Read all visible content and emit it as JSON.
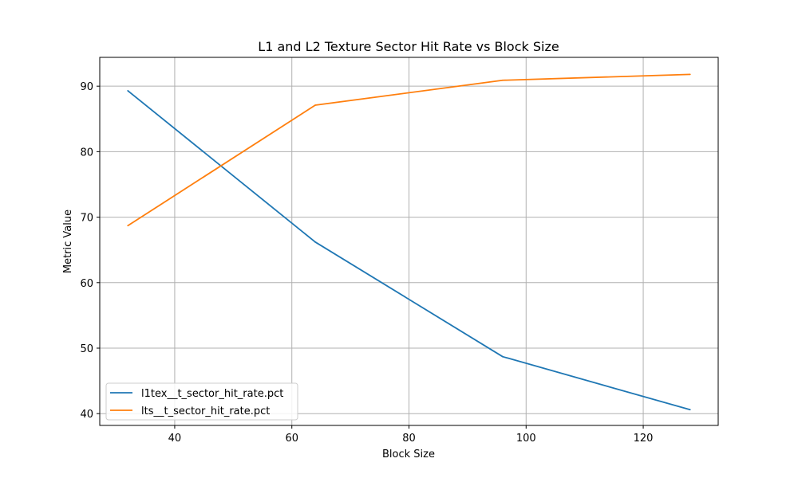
{
  "chart_data": {
    "type": "line",
    "title": "L1 and L2 Texture Sector Hit Rate vs Block Size",
    "xlabel": "Block Size",
    "ylabel": "Metric Value",
    "x": [
      32,
      64,
      96,
      128
    ],
    "xlim": [
      27.2,
      132.8
    ],
    "ylim": [
      38.2,
      94.4
    ],
    "xticks": [
      40,
      60,
      80,
      100,
      120
    ],
    "yticks": [
      40,
      50,
      60,
      70,
      80,
      90
    ],
    "grid": true,
    "legend_position": "lower-left",
    "series": [
      {
        "name": "l1tex__t_sector_hit_rate.pct",
        "color": "#1f77b4",
        "values": [
          89.3,
          66.2,
          48.7,
          40.6
        ]
      },
      {
        "name": "lts__t_sector_hit_rate.pct",
        "color": "#ff7f0e",
        "values": [
          68.7,
          87.1,
          90.9,
          91.8
        ]
      }
    ]
  }
}
